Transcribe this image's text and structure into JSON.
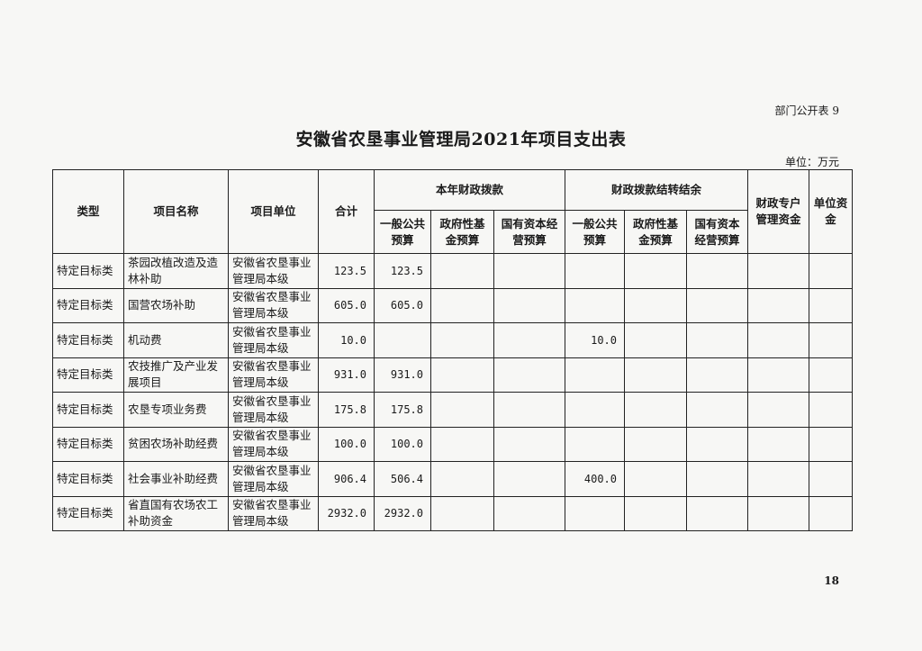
{
  "form_no": "部门公开表 9",
  "title": "安徽省农垦事业管理局2021年项目支出表",
  "unit": "单位：万元",
  "page_number": "18",
  "headers": {
    "type": "类型",
    "project_name": "项目名称",
    "project_unit": "项目单位",
    "total": "合计",
    "current_year": "本年财政拨款",
    "carryover": "财政拨款结转结余",
    "general_budget": "一般公共预算",
    "gov_fund_budget": "政府性基金预算",
    "state_capital_budget": "国有资本经营预算",
    "special_account": "财政专户管理资金",
    "unit_funds": "单位资金"
  },
  "rows": [
    {
      "type": "特定目标类",
      "name": "茶园改植改造及造林补助",
      "unit": "安徽省农垦事业管理局本级",
      "total": "123.5",
      "cy_general": "123.5",
      "co_general": ""
    },
    {
      "type": "特定目标类",
      "name": "国营农场补助",
      "unit": "安徽省农垦事业管理局本级",
      "total": "605.0",
      "cy_general": "605.0",
      "co_general": ""
    },
    {
      "type": "特定目标类",
      "name": "机动费",
      "unit": "安徽省农垦事业管理局本级",
      "total": "10.0",
      "cy_general": "",
      "co_general": "10.0"
    },
    {
      "type": "特定目标类",
      "name": "农技推广及产业发展项目",
      "unit": "安徽省农垦事业管理局本级",
      "total": "931.0",
      "cy_general": "931.0",
      "co_general": ""
    },
    {
      "type": "特定目标类",
      "name": "农垦专项业务费",
      "unit": "安徽省农垦事业管理局本级",
      "total": "175.8",
      "cy_general": "175.8",
      "co_general": ""
    },
    {
      "type": "特定目标类",
      "name": "贫困农场补助经费",
      "unit": "安徽省农垦事业管理局本级",
      "total": "100.0",
      "cy_general": "100.0",
      "co_general": ""
    },
    {
      "type": "特定目标类",
      "name": "社会事业补助经费",
      "unit": "安徽省农垦事业管理局本级",
      "total": "906.4",
      "cy_general": "506.4",
      "co_general": "400.0"
    },
    {
      "type": "特定目标类",
      "name": "省直国有农场农工补助资金",
      "unit": "安徽省农垦事业管理局本级",
      "total": "2932.0",
      "cy_general": "2932.0",
      "co_general": ""
    }
  ]
}
